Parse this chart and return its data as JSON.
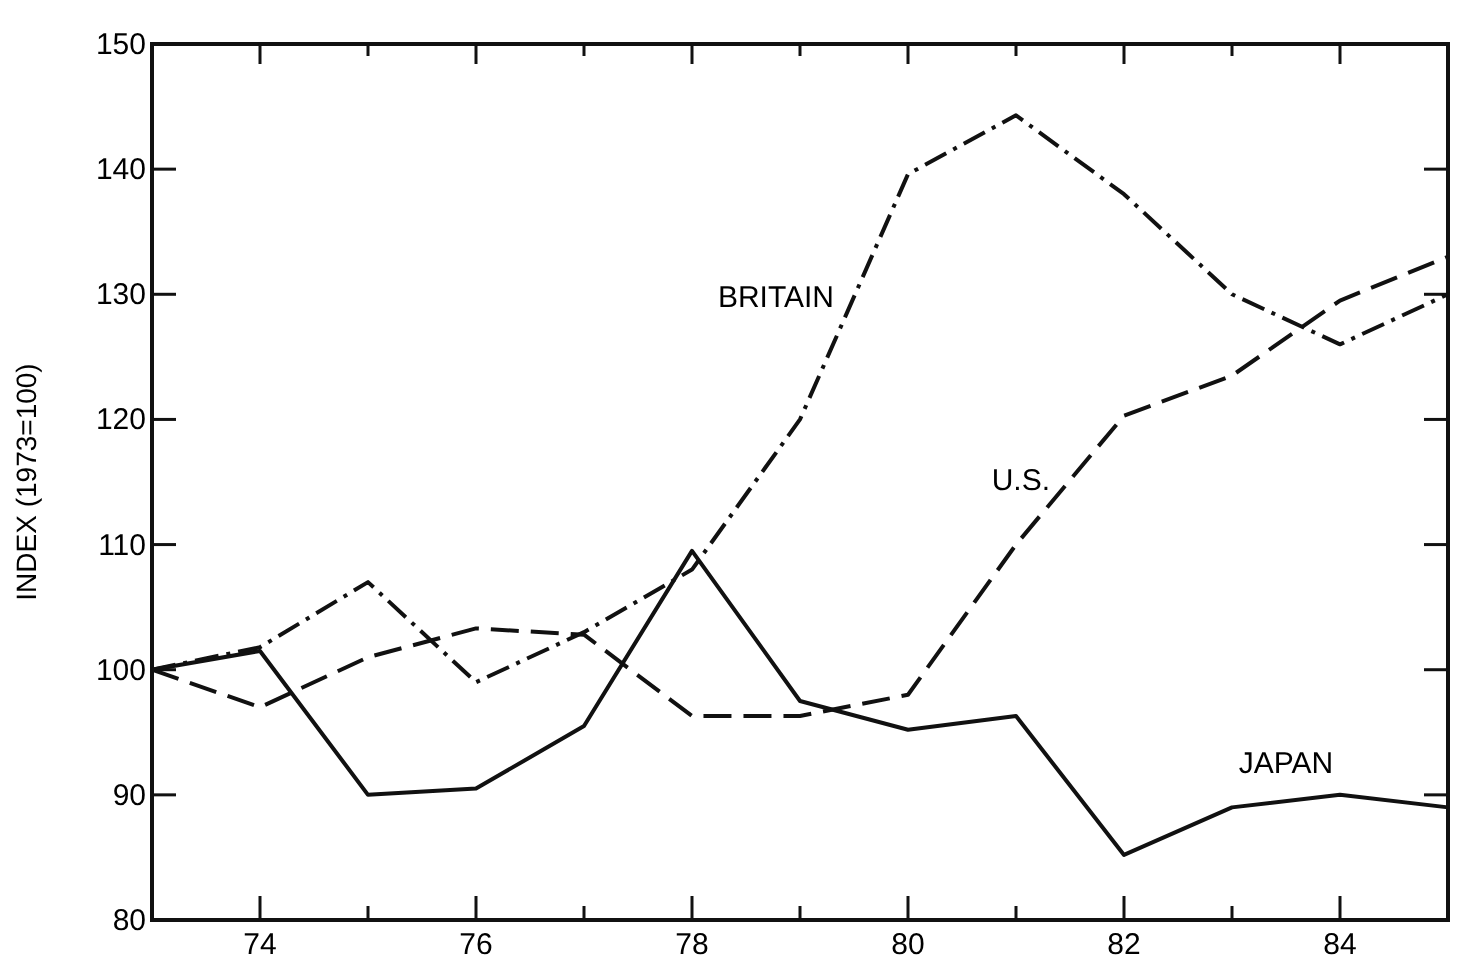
{
  "chart_data": {
    "type": "line",
    "ylabel": "INDEX (1973=100)",
    "x": [
      73,
      74,
      75,
      76,
      77,
      78,
      79,
      80,
      81,
      82,
      83,
      84,
      85
    ],
    "xlim": [
      73,
      85
    ],
    "xticks": [
      {
        "value": 74,
        "label": "74"
      },
      {
        "value": 75,
        "label": null
      },
      {
        "value": 76,
        "label": "76"
      },
      {
        "value": 77,
        "label": null
      },
      {
        "value": 78,
        "label": "78"
      },
      {
        "value": 79,
        "label": null
      },
      {
        "value": 80,
        "label": "80"
      },
      {
        "value": 81,
        "label": null
      },
      {
        "value": 82,
        "label": "82"
      },
      {
        "value": 83,
        "label": null
      },
      {
        "value": 84,
        "label": "84"
      }
    ],
    "ylim": [
      80,
      150
    ],
    "yticks": [
      80,
      90,
      100,
      110,
      120,
      130,
      140,
      150
    ],
    "grid": false,
    "marker": "none",
    "series": [
      {
        "name": "JAPAN",
        "color": "#111111",
        "line_style": "solid",
        "values": [
          100,
          101.5,
          90,
          90.5,
          95.5,
          109.5,
          97.5,
          95.2,
          96.3,
          85.2,
          89,
          90,
          89
        ]
      },
      {
        "name": "U.S.",
        "color": "#111111",
        "line_style": "dashed",
        "values": [
          100,
          97,
          101,
          103.3,
          102.8,
          96.3,
          96.3,
          98,
          110,
          120.3,
          123.5,
          129.5,
          133
        ]
      },
      {
        "name": "BRITAIN",
        "color": "#111111",
        "line_style": "dashdot",
        "values": [
          100,
          101.8,
          107,
          99,
          103,
          108,
          120,
          139.6,
          144.3,
          138,
          130,
          126,
          130
        ]
      }
    ]
  }
}
